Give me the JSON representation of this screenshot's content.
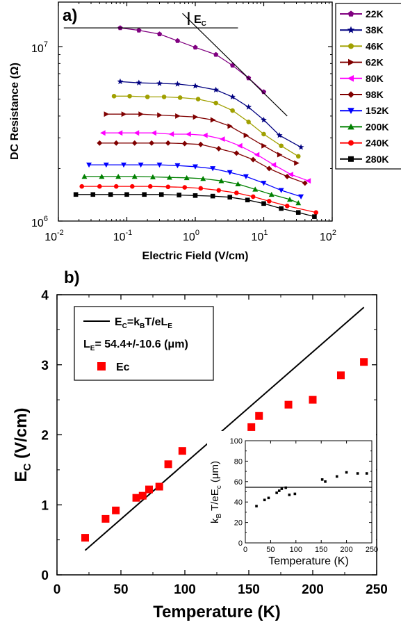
{
  "chart_data": [
    {
      "panel_label": "a)",
      "type": "line",
      "xlabel": "Electric Field (V/cm)",
      "ylabel": "DC Resistance (Ω)",
      "xscale": "log",
      "yscale": "log",
      "xlim": [
        0.01,
        100
      ],
      "ylim": [
        1000000,
        18000000
      ],
      "x_ticks": [
        {
          "v": 0.01,
          "m": "10",
          "e": "-2"
        },
        {
          "v": 0.1,
          "m": "10",
          "e": "-1"
        },
        {
          "v": 1,
          "m": "10",
          "e": "0"
        },
        {
          "v": 10,
          "m": "10",
          "e": "1"
        },
        {
          "v": 100,
          "m": "10",
          "e": "2"
        }
      ],
      "y_ticks": [
        {
          "v": 1000000,
          "m": "10",
          "e": "6"
        },
        {
          "v": 10000000,
          "m": "10",
          "e": "7"
        }
      ],
      "annotation": {
        "label": "E",
        "sub": "C"
      },
      "legend_position": "right-outside",
      "series": [
        {
          "name": "22K",
          "color": "#800080",
          "marker": "pentagon",
          "x": [
            0.08,
            0.15,
            0.3,
            0.55,
            1,
            2,
            3.5,
            6,
            10
          ],
          "y": [
            12800000,
            12400000,
            11800000,
            10800000,
            9900000,
            9000000,
            7800000,
            6600000,
            5500000
          ]
        },
        {
          "name": "38K",
          "color": "#000080",
          "marker": "star",
          "x": [
            0.08,
            0.15,
            0.3,
            0.55,
            1,
            2,
            3.5,
            6,
            10,
            17,
            35
          ],
          "y": [
            6300000,
            6200000,
            6150000,
            6100000,
            5950000,
            5650000,
            5150000,
            4500000,
            3800000,
            3100000,
            2650000
          ]
        },
        {
          "name": "46K",
          "color": "#a0a000",
          "marker": "circle",
          "x": [
            0.065,
            0.11,
            0.2,
            0.35,
            0.6,
            1.1,
            2,
            3.5,
            6,
            10,
            18,
            32
          ],
          "y": [
            5200000,
            5200000,
            5150000,
            5150000,
            5100000,
            5000000,
            4750000,
            4300000,
            3700000,
            3150000,
            2700000,
            2350000
          ]
        },
        {
          "name": "62K",
          "color": "#800000",
          "marker": "triangle-right",
          "x": [
            0.05,
            0.09,
            0.16,
            0.3,
            0.55,
            1,
            1.8,
            3.2,
            5.5,
            10,
            17,
            30
          ],
          "y": [
            4100000,
            4100000,
            4100000,
            4050000,
            4000000,
            3950000,
            3800000,
            3500000,
            3100000,
            2700000,
            2400000,
            2150000
          ]
        },
        {
          "name": "80K",
          "color": "#ff00ff",
          "marker": "triangle-left",
          "x": [
            0.045,
            0.08,
            0.14,
            0.25,
            0.45,
            0.8,
            1.4,
            2.5,
            4.5,
            8,
            14,
            25,
            45
          ],
          "y": [
            3200000,
            3200000,
            3200000,
            3200000,
            3150000,
            3150000,
            3100000,
            2950000,
            2700000,
            2400000,
            2100000,
            1850000,
            1700000
          ]
        },
        {
          "name": "98K",
          "color": "#800000",
          "marker": "diamond",
          "x": [
            0.04,
            0.07,
            0.13,
            0.23,
            0.4,
            0.7,
            1.2,
            2.2,
            4,
            7,
            12,
            22,
            40
          ],
          "y": [
            2800000,
            2800000,
            2800000,
            2800000,
            2800000,
            2780000,
            2750000,
            2600000,
            2450000,
            2250000,
            2000000,
            1800000,
            1650000
          ]
        },
        {
          "name": "152K",
          "color": "#0000ff",
          "marker": "triangle-down",
          "x": [
            0.028,
            0.05,
            0.09,
            0.16,
            0.3,
            0.55,
            1,
            1.8,
            3.2,
            5.5,
            10,
            18,
            35
          ],
          "y": [
            2100000,
            2100000,
            2100000,
            2100000,
            2100000,
            2080000,
            2050000,
            2000000,
            1900000,
            1800000,
            1650000,
            1500000,
            1380000
          ]
        },
        {
          "name": "200K",
          "color": "#008000",
          "marker": "triangle-up",
          "x": [
            0.024,
            0.043,
            0.075,
            0.13,
            0.24,
            0.42,
            0.75,
            1.3,
            2.4,
            4.2,
            7.5,
            13,
            24,
            32
          ],
          "y": [
            1800000,
            1800000,
            1800000,
            1800000,
            1790000,
            1780000,
            1770000,
            1750000,
            1700000,
            1630000,
            1520000,
            1420000,
            1330000,
            1270000
          ]
        },
        {
          "name": "240K",
          "color": "#ff0000",
          "marker": "circle",
          "x": [
            0.022,
            0.04,
            0.07,
            0.12,
            0.22,
            0.4,
            0.7,
            1.2,
            2.2,
            4,
            7,
            12,
            22,
            58
          ],
          "y": [
            1580000,
            1580000,
            1580000,
            1580000,
            1580000,
            1570000,
            1560000,
            1540000,
            1500000,
            1450000,
            1380000,
            1300000,
            1220000,
            1120000
          ]
        },
        {
          "name": "280K",
          "color": "#000000",
          "marker": "square",
          "x": [
            0.018,
            0.032,
            0.058,
            0.1,
            0.18,
            0.32,
            0.58,
            1,
            1.8,
            3.2,
            5.8,
            10,
            18,
            32,
            55
          ],
          "y": [
            1420000,
            1420000,
            1420000,
            1420000,
            1420000,
            1420000,
            1410000,
            1400000,
            1390000,
            1370000,
            1320000,
            1260000,
            1180000,
            1120000,
            1060000
          ]
        }
      ]
    },
    {
      "panel_label": "b)",
      "type": "scatter",
      "xlabel": "Temperature (K)",
      "ylabel": {
        "main": "E",
        "sub": "C",
        "rest": " (V/cm)"
      },
      "xlim": [
        0,
        250
      ],
      "ylim": [
        0,
        4
      ],
      "x_ticks": [
        0,
        50,
        100,
        150,
        200,
        250
      ],
      "y_ticks": [
        0,
        1,
        2,
        3,
        4
      ],
      "legend_position": "top-left",
      "series": [
        {
          "name": "Ec",
          "color": "#ff0000",
          "marker": "square",
          "x": [
            22,
            38,
            46,
            62,
            67,
            72,
            80,
            87,
            98,
            152,
            158,
            181,
            200,
            222,
            240
          ],
          "y": [
            0.53,
            0.8,
            0.92,
            1.1,
            1.13,
            1.22,
            1.26,
            1.58,
            1.77,
            2.11,
            2.27,
            2.43,
            2.5,
            2.85,
            3.04
          ]
        },
        {
          "name": "fit",
          "color": "#000000",
          "kind": "line",
          "x": [
            22,
            240
          ],
          "y": [
            0.35,
            3.82
          ]
        }
      ],
      "legend": {
        "fit": {
          "pre": "E",
          "s1": "C",
          "mid": "=k",
          "s2": "B",
          "post": "T/eL",
          "s3": "E"
        },
        "le": {
          "pre": "L",
          "s1": "E",
          "post": "= 54.4+/-10.6 (",
          "mu": "μ",
          "end": "m)"
        },
        "ec": "Ec"
      }
    },
    {
      "type": "scatter",
      "role": "inset",
      "xlabel": "Temperature (K)",
      "ylabel": {
        "pre": "k",
        "s1": "B",
        "mid": " T/eE",
        "s2": "c",
        "post": " (μm)"
      },
      "xlim": [
        0,
        250
      ],
      "ylim": [
        0,
        100
      ],
      "x_ticks": [
        0,
        50,
        100,
        150,
        200,
        250
      ],
      "y_ticks": [
        0,
        10,
        20,
        30,
        40,
        50,
        60,
        70,
        80,
        90,
        100
      ],
      "hline": 54.4,
      "series": [
        {
          "name": "",
          "color": "#000000",
          "marker": "square",
          "x": [
            22,
            38,
            46,
            62,
            67,
            72,
            80,
            87,
            98,
            152,
            158,
            181,
            200,
            222,
            240
          ],
          "y": [
            36,
            42,
            44,
            49,
            51,
            53,
            54,
            47,
            48,
            62,
            60,
            65,
            69,
            68,
            68
          ]
        }
      ]
    }
  ]
}
